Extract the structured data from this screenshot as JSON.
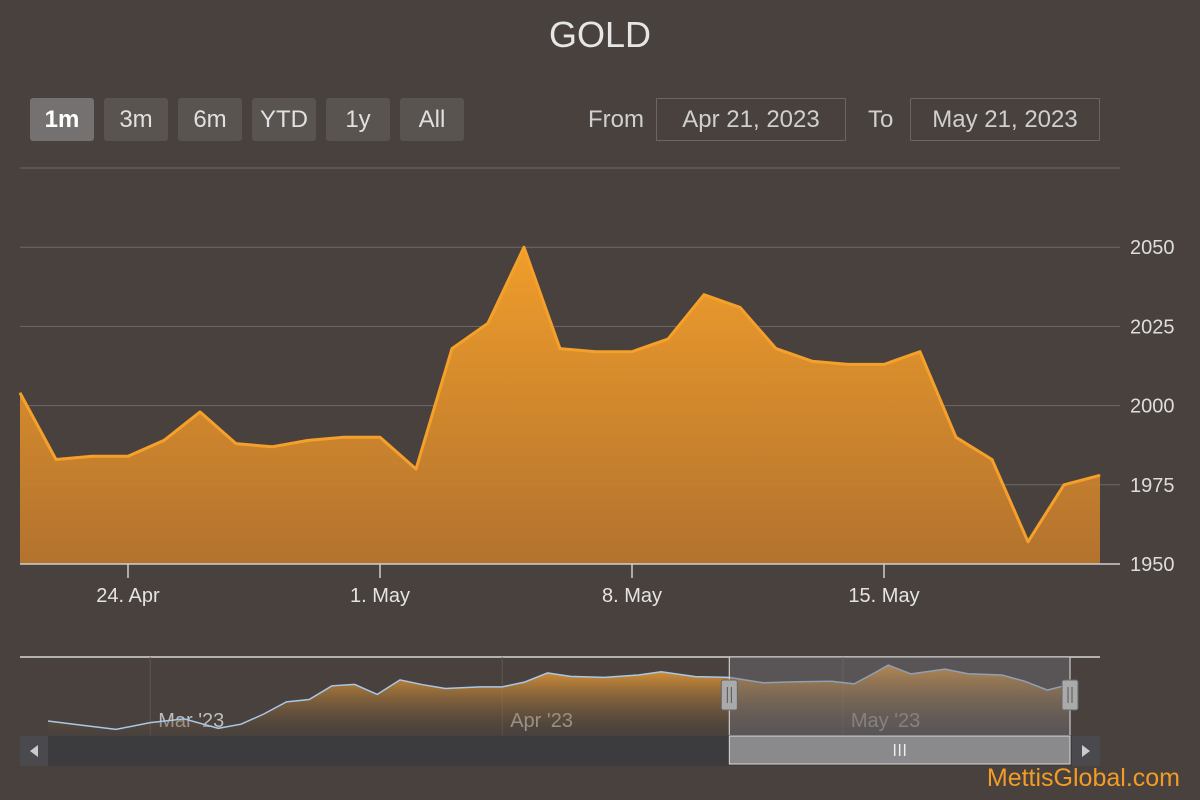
{
  "title": "GOLD",
  "range_selector": {
    "buttons": [
      "1m",
      "3m",
      "6m",
      "YTD",
      "1y",
      "All"
    ],
    "active": "1m",
    "from_label": "From",
    "from_value": "Apr 21, 2023",
    "to_label": "To",
    "to_value": "May 21, 2023"
  },
  "credit": "MettisGlobal.com",
  "colors": {
    "background": "#48413d",
    "line": "#f5a02a",
    "area_top": "#f5a02a",
    "area_bottom": "#b8752e",
    "grid": "#6e6a68",
    "navigator_line": "#a9c8e8"
  },
  "chart_data": {
    "type": "area",
    "title": "GOLD",
    "xlabel": "",
    "ylabel": "",
    "x_type": "date",
    "x_range": [
      "2023-04-21",
      "2023-05-21"
    ],
    "ylim": [
      1950,
      2075
    ],
    "y_ticks": [
      1950,
      1975,
      2000,
      2025,
      2050
    ],
    "x_tick_labels": [
      {
        "date": "2023-04-24",
        "label": "24. Apr"
      },
      {
        "date": "2023-05-01",
        "label": "1. May"
      },
      {
        "date": "2023-05-08",
        "label": "8. May"
      },
      {
        "date": "2023-05-15",
        "label": "15. May"
      }
    ],
    "grid": true,
    "series": [
      {
        "values": [
          {
            "x": "2023-04-21",
            "y": 2004
          },
          {
            "x": "2023-04-22",
            "y": 1983
          },
          {
            "x": "2023-04-23",
            "y": 1984
          },
          {
            "x": "2023-04-24",
            "y": 1984
          },
          {
            "x": "2023-04-25",
            "y": 1989
          },
          {
            "x": "2023-04-26",
            "y": 1998
          },
          {
            "x": "2023-04-27",
            "y": 1988
          },
          {
            "x": "2023-04-28",
            "y": 1987
          },
          {
            "x": "2023-04-29",
            "y": 1989
          },
          {
            "x": "2023-04-30",
            "y": 1990
          },
          {
            "x": "2023-05-01",
            "y": 1990
          },
          {
            "x": "2023-05-02",
            "y": 1980
          },
          {
            "x": "2023-05-03",
            "y": 2018
          },
          {
            "x": "2023-05-04",
            "y": 2026
          },
          {
            "x": "2023-05-05",
            "y": 2050
          },
          {
            "x": "2023-05-06",
            "y": 2018
          },
          {
            "x": "2023-05-07",
            "y": 2017
          },
          {
            "x": "2023-05-08",
            "y": 2017
          },
          {
            "x": "2023-05-09",
            "y": 2021
          },
          {
            "x": "2023-05-10",
            "y": 2035
          },
          {
            "x": "2023-05-11",
            "y": 2031
          },
          {
            "x": "2023-05-12",
            "y": 2018
          },
          {
            "x": "2023-05-13",
            "y": 2014
          },
          {
            "x": "2023-05-14",
            "y": 2013
          },
          {
            "x": "2023-05-15",
            "y": 2013
          },
          {
            "x": "2023-05-16",
            "y": 2017
          },
          {
            "x": "2023-05-17",
            "y": 1990
          },
          {
            "x": "2023-05-18",
            "y": 1983
          },
          {
            "x": "2023-05-19",
            "y": 1957
          },
          {
            "x": "2023-05-20",
            "y": 1975
          },
          {
            "x": "2023-05-21",
            "y": 1978
          }
        ]
      }
    ]
  },
  "navigator": {
    "x_range": [
      "2023-02-20",
      "2023-05-21"
    ],
    "selected_range": [
      "2023-04-21",
      "2023-05-21"
    ],
    "tick_labels": [
      {
        "date": "2023-03-01",
        "label": "Mar '23"
      },
      {
        "date": "2023-04-01",
        "label": "Apr '23"
      },
      {
        "date": "2023-05-01",
        "label": "May '23"
      }
    ],
    "values": [
      {
        "x": "2023-02-20",
        "y": 1842
      },
      {
        "x": "2023-02-23",
        "y": 1826
      },
      {
        "x": "2023-02-26",
        "y": 1811
      },
      {
        "x": "2023-03-01",
        "y": 1836
      },
      {
        "x": "2023-03-04",
        "y": 1850
      },
      {
        "x": "2023-03-07",
        "y": 1815
      },
      {
        "x": "2023-03-09",
        "y": 1830
      },
      {
        "x": "2023-03-11",
        "y": 1868
      },
      {
        "x": "2023-03-13",
        "y": 1913
      },
      {
        "x": "2023-03-15",
        "y": 1922
      },
      {
        "x": "2023-03-17",
        "y": 1973
      },
      {
        "x": "2023-03-19",
        "y": 1978
      },
      {
        "x": "2023-03-21",
        "y": 1941
      },
      {
        "x": "2023-03-23",
        "y": 1995
      },
      {
        "x": "2023-03-25",
        "y": 1977
      },
      {
        "x": "2023-03-27",
        "y": 1963
      },
      {
        "x": "2023-03-30",
        "y": 1969
      },
      {
        "x": "2023-04-01",
        "y": 1969
      },
      {
        "x": "2023-04-03",
        "y": 1987
      },
      {
        "x": "2023-04-05",
        "y": 2021
      },
      {
        "x": "2023-04-07",
        "y": 2008
      },
      {
        "x": "2023-04-10",
        "y": 2004
      },
      {
        "x": "2023-04-13",
        "y": 2013
      },
      {
        "x": "2023-04-15",
        "y": 2025
      },
      {
        "x": "2023-04-18",
        "y": 2007
      },
      {
        "x": "2023-04-21",
        "y": 2004
      },
      {
        "x": "2023-04-24",
        "y": 1984
      },
      {
        "x": "2023-04-27",
        "y": 1988
      },
      {
        "x": "2023-04-30",
        "y": 1990
      },
      {
        "x": "2023-05-02",
        "y": 1980
      },
      {
        "x": "2023-05-04",
        "y": 2026
      },
      {
        "x": "2023-05-05",
        "y": 2050
      },
      {
        "x": "2023-05-07",
        "y": 2017
      },
      {
        "x": "2023-05-10",
        "y": 2035
      },
      {
        "x": "2023-05-12",
        "y": 2018
      },
      {
        "x": "2023-05-15",
        "y": 2013
      },
      {
        "x": "2023-05-17",
        "y": 1990
      },
      {
        "x": "2023-05-19",
        "y": 1957
      },
      {
        "x": "2023-05-21",
        "y": 1978
      }
    ]
  }
}
